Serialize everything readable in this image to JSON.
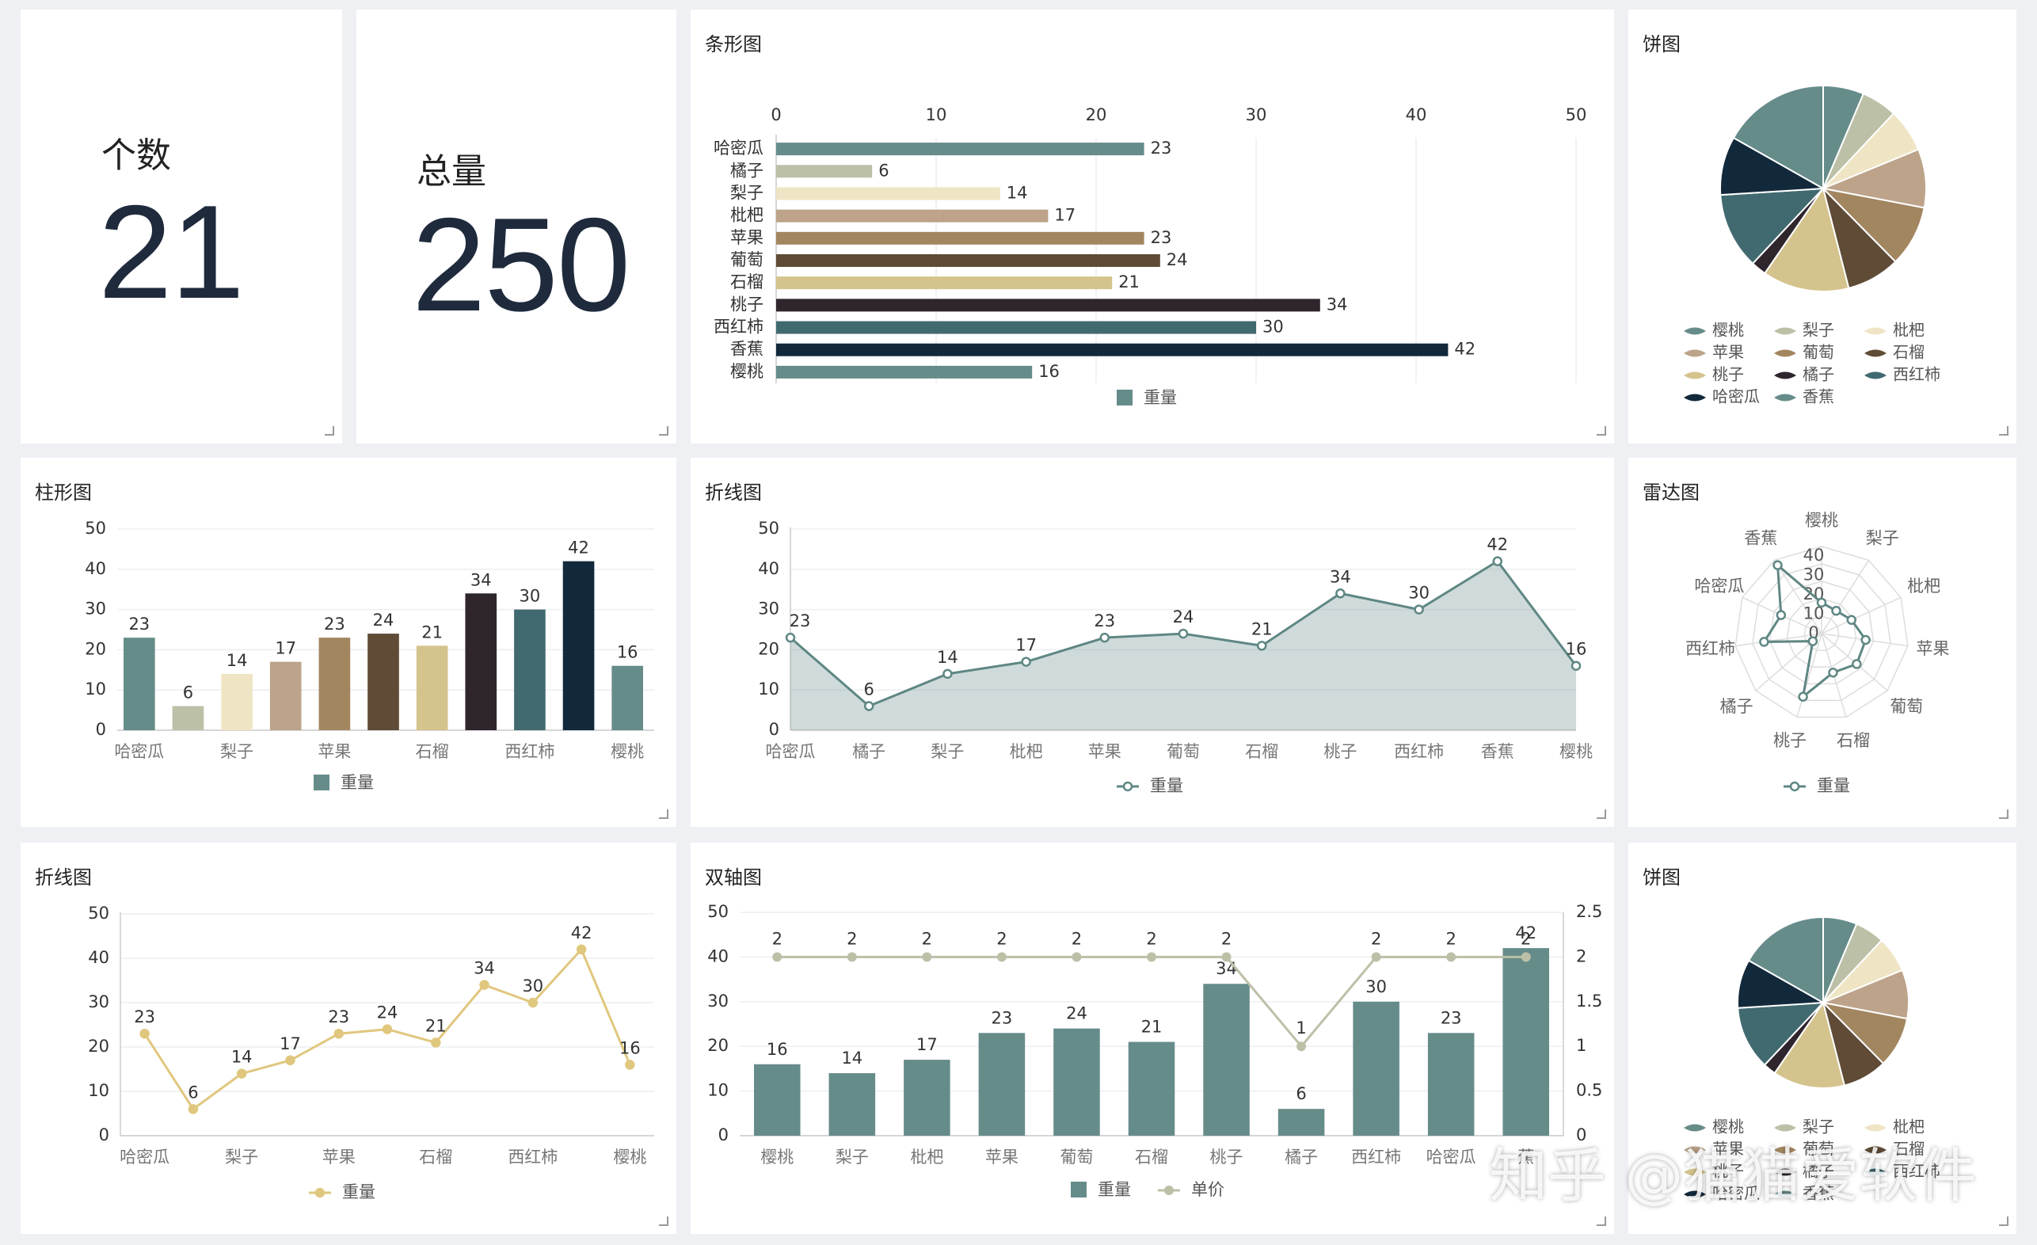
{
  "palette": [
    "#668c8a",
    "#bcc0a7",
    "#efe5c5",
    "#bca38a",
    "#a28660",
    "#5f4b36",
    "#d5c38d",
    "#2f252d",
    "#416a70",
    "#12293b"
  ],
  "kpis": [
    {
      "label": "个数",
      "value": "21"
    },
    {
      "label": "总量",
      "value": "250"
    }
  ],
  "panels": {
    "bar_h": {
      "title": "条形图"
    },
    "pie1": {
      "title": "饼图"
    },
    "column": {
      "title": "柱形图"
    },
    "line1": {
      "title": "折线图"
    },
    "radar": {
      "title": "雷达图"
    },
    "line2": {
      "title": "折线图"
    },
    "dual": {
      "title": "双轴图"
    },
    "pie2": {
      "title": "饼图"
    }
  },
  "watermark": "知乎 @猫猫爱软件",
  "chart_data": [
    {
      "id": "bar_h",
      "type": "bar",
      "orientation": "horizontal",
      "categories": [
        "哈密瓜",
        "橘子",
        "梨子",
        "枇杷",
        "苹果",
        "葡萄",
        "石榴",
        "桃子",
        "西红柿",
        "香蕉",
        "樱桃"
      ],
      "series": [
        {
          "name": "重量",
          "values": [
            23,
            6,
            14,
            17,
            23,
            24,
            21,
            34,
            30,
            42,
            16
          ]
        }
      ],
      "xlim": [
        0,
        50
      ],
      "xticks": [
        "0",
        "10",
        "20",
        "30",
        "40",
        "50"
      ],
      "legend": "bottom",
      "grid": true
    },
    {
      "id": "pie1",
      "type": "pie",
      "categories": [
        "樱桃",
        "梨子",
        "枇杷",
        "苹果",
        "葡萄",
        "石榴",
        "桃子",
        "橘子",
        "西红柿",
        "哈密瓜",
        "香蕉"
      ],
      "values": [
        16,
        14,
        17,
        23,
        24,
        21,
        34,
        6,
        30,
        23,
        42
      ],
      "legend": "bottom"
    },
    {
      "id": "column",
      "type": "bar",
      "categories": [
        "哈密瓜",
        "橘子",
        "梨子",
        "枇杷",
        "苹果",
        "葡萄",
        "石榴",
        "桃子",
        "西红柿",
        "香蕉",
        "樱桃"
      ],
      "xticklabels": [
        "哈密瓜",
        "",
        "梨子",
        "",
        "苹果",
        "",
        "石榴",
        "",
        "西红柿",
        "",
        "樱桃"
      ],
      "series": [
        {
          "name": "重量",
          "values": [
            23,
            6,
            14,
            17,
            23,
            24,
            21,
            34,
            30,
            42,
            16
          ]
        }
      ],
      "ylim": [
        0,
        50
      ],
      "yticks": [
        "0",
        "10",
        "20",
        "30",
        "40",
        "50"
      ],
      "legend": "bottom",
      "grid": true
    },
    {
      "id": "line1",
      "type": "area",
      "categories": [
        "哈密瓜",
        "橘子",
        "梨子",
        "枇杷",
        "苹果",
        "葡萄",
        "石榴",
        "桃子",
        "西红柿",
        "香蕉",
        "樱桃"
      ],
      "series": [
        {
          "name": "重量",
          "values": [
            23,
            6,
            14,
            17,
            23,
            24,
            21,
            34,
            30,
            42,
            16
          ]
        }
      ],
      "ylim": [
        0,
        50
      ],
      "yticks": [
        "0",
        "10",
        "20",
        "30",
        "40",
        "50"
      ],
      "legend": "bottom",
      "grid": true
    },
    {
      "id": "radar",
      "type": "radar",
      "categories": [
        "樱桃",
        "梨子",
        "枇杷",
        "苹果",
        "葡萄",
        "石榴",
        "桃子",
        "橘子",
        "西红柿",
        "哈密瓜",
        "香蕉"
      ],
      "series": [
        {
          "name": "重量",
          "values": [
            16,
            14,
            17,
            23,
            24,
            21,
            34,
            6,
            30,
            23,
            42
          ]
        }
      ],
      "rlim": [
        0,
        45
      ],
      "rticks": [
        "0",
        "10",
        "20",
        "30",
        "40"
      ],
      "legend": "bottom"
    },
    {
      "id": "line2",
      "type": "line",
      "categories": [
        "哈密瓜",
        "橘子",
        "梨子",
        "枇杷",
        "苹果",
        "葡萄",
        "石榴",
        "桃子",
        "西红柿",
        "香蕉",
        "樱桃"
      ],
      "xticklabels": [
        "哈密瓜",
        "",
        "梨子",
        "",
        "苹果",
        "",
        "石榴",
        "",
        "西红柿",
        "",
        "樱桃"
      ],
      "series": [
        {
          "name": "重量",
          "values": [
            23,
            6,
            14,
            17,
            23,
            24,
            21,
            34,
            30,
            42,
            16
          ]
        }
      ],
      "ylim": [
        0,
        50
      ],
      "yticks": [
        "0",
        "10",
        "20",
        "30",
        "40",
        "50"
      ],
      "legend": "bottom",
      "grid": true
    },
    {
      "id": "dual",
      "type": "bar",
      "categories": [
        "樱桃",
        "梨子",
        "枇杷",
        "苹果",
        "葡萄",
        "石榴",
        "桃子",
        "橘子",
        "西红柿",
        "哈密瓜",
        "香蕉"
      ],
      "xticklabels": [
        "樱桃",
        "梨子",
        "枇杷",
        "苹果",
        "葡萄",
        "石榴",
        "桃子",
        "橘子",
        "西红柿",
        "哈密瓜",
        "蕉"
      ],
      "series": [
        {
          "name": "重量",
          "type": "bar",
          "axis": "left",
          "values": [
            16,
            14,
            17,
            23,
            24,
            21,
            34,
            6,
            30,
            23,
            42
          ]
        },
        {
          "name": "单价",
          "type": "line",
          "axis": "right",
          "values": [
            2,
            2,
            2,
            2,
            2,
            2,
            2,
            1,
            2,
            2,
            2
          ]
        }
      ],
      "ylim": [
        0,
        50
      ],
      "yticks": [
        "0",
        "10",
        "20",
        "30",
        "40",
        "50"
      ],
      "y2lim": [
        0,
        2.5
      ],
      "y2ticks": [
        "0",
        "0.5",
        "1",
        "1.5",
        "2",
        "2.5"
      ],
      "legend": "bottom",
      "grid": true
    },
    {
      "id": "pie2",
      "type": "pie",
      "categories": [
        "樱桃",
        "梨子",
        "枇杷",
        "苹果",
        "葡萄",
        "石榴",
        "桃子",
        "橘子",
        "西红柿",
        "哈密瓜",
        "香蕉"
      ],
      "values": [
        16,
        14,
        17,
        23,
        24,
        21,
        34,
        6,
        30,
        23,
        42
      ],
      "legend": "bottom"
    }
  ]
}
